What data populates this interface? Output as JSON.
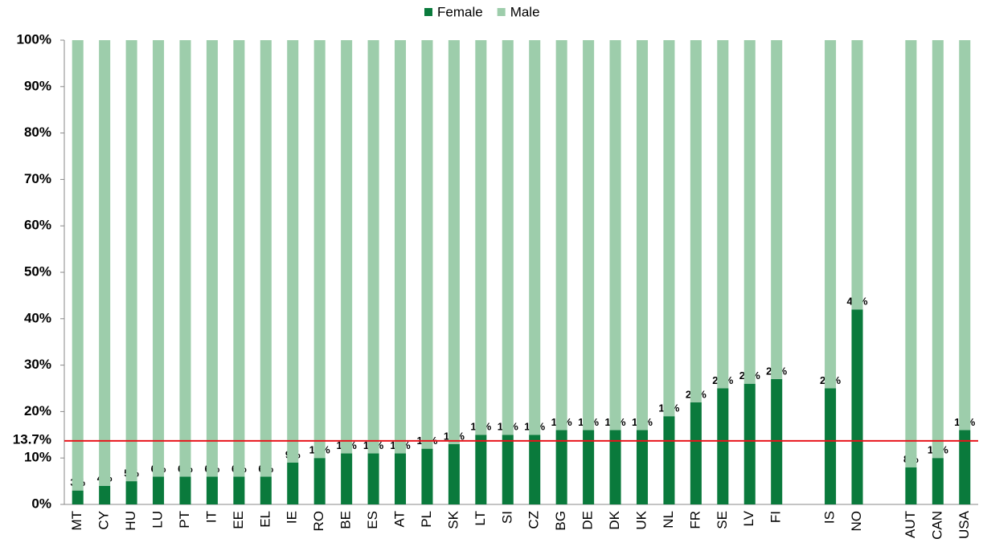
{
  "chart_data": {
    "type": "stacked-bar",
    "categories": [
      "MT",
      "CY",
      "HU",
      "LU",
      "PT",
      "IT",
      "EE",
      "EL",
      "IE",
      "RO",
      "BE",
      "ES",
      "AT",
      "PL",
      "SK",
      "LT",
      "SI",
      "CZ",
      "BG",
      "DE",
      "DK",
      "UK",
      "NL",
      "FR",
      "SE",
      "LV",
      "FI",
      null,
      "IS",
      "NO",
      null,
      "AUT",
      "CAN",
      "USA"
    ],
    "series": [
      {
        "name": "Female",
        "color": "#0a7a3c",
        "values": [
          3,
          4,
          5,
          6,
          6,
          6,
          6,
          6,
          9,
          10,
          11,
          11,
          11,
          12,
          13,
          15,
          15,
          15,
          16,
          16,
          16,
          16,
          19,
          22,
          25,
          26,
          27,
          null,
          25,
          42,
          null,
          8,
          10,
          16
        ],
        "value_labels": [
          "3%",
          "4%",
          "5%",
          "6%",
          "6%",
          "6%",
          "6%",
          "6%",
          "9%",
          "10%",
          "11%",
          "11%",
          "11%",
          "12%",
          "13%",
          "15%",
          "15%",
          "15%",
          "16%",
          "16%",
          "16%",
          "16%",
          "19%",
          "22%",
          "25%",
          "26%",
          "27%",
          null,
          "25%",
          "42%",
          null,
          "8%",
          "10%",
          "16%"
        ]
      },
      {
        "name": "Male",
        "color": "#9dcdab",
        "values": [
          97,
          96,
          95,
          94,
          94,
          94,
          94,
          94,
          91,
          90,
          89,
          89,
          89,
          88,
          87,
          85,
          85,
          85,
          84,
          84,
          84,
          84,
          81,
          78,
          75,
          74,
          73,
          null,
          75,
          58,
          null,
          92,
          90,
          84
        ]
      }
    ],
    "ylim": [
      0,
      100
    ],
    "yticks": [
      {
        "value": 0,
        "label": "0%"
      },
      {
        "value": 10,
        "label": "10%"
      },
      {
        "value": 20,
        "label": "20%"
      },
      {
        "value": 30,
        "label": "30%"
      },
      {
        "value": 40,
        "label": "40%"
      },
      {
        "value": 50,
        "label": "50%"
      },
      {
        "value": 60,
        "label": "60%"
      },
      {
        "value": 70,
        "label": "70%"
      },
      {
        "value": 80,
        "label": "80%"
      },
      {
        "value": 90,
        "label": "90%"
      },
      {
        "value": 100,
        "label": "100%"
      }
    ],
    "reference_line": {
      "value": 13.7,
      "label": "13.7%",
      "color": "#e8141b"
    },
    "legend": "top"
  }
}
